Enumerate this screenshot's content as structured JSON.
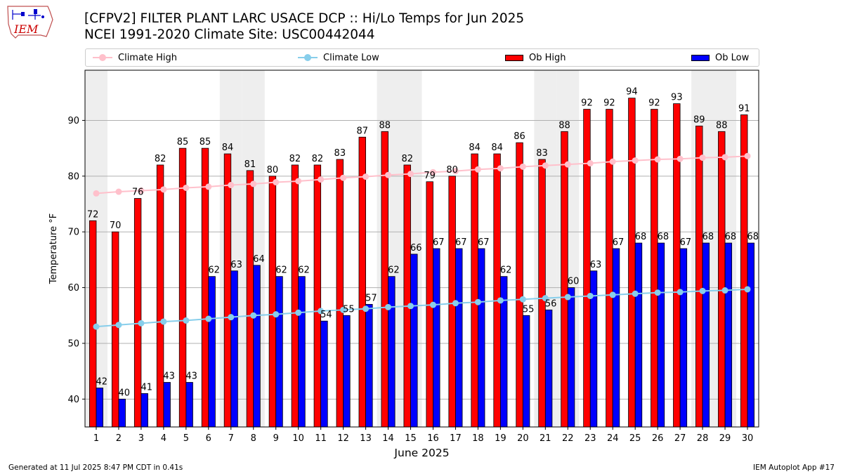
{
  "title_line1": "[CFPV2] FILTER PLANT LARC  USACE DCP :: Hi/Lo Temps for Jun 2025",
  "title_line2": "NCEI 1991-2020 Climate Site: USC00442044",
  "logo_text": "IEM",
  "legend": [
    {
      "label": "Climate High",
      "color": "#ffc0cb",
      "kind": "line"
    },
    {
      "label": "Climate Low",
      "color": "#87ceeb",
      "kind": "line"
    },
    {
      "label": "Ob High",
      "color": "#ff0000",
      "kind": "bar"
    },
    {
      "label": "Ob Low",
      "color": "#0000ff",
      "kind": "bar"
    }
  ],
  "footer_left": "Generated at 11 Jul 2025 8:47 PM CDT in 0.41s",
  "footer_right": "IEM Autoplot App #17",
  "chart_data": {
    "type": "bar",
    "xlabel": "June 2025",
    "ylabel": "Temperature °F",
    "ylim": [
      35,
      99
    ],
    "yticks": [
      40,
      50,
      60,
      70,
      80,
      90
    ],
    "grid": true,
    "weekend_shading_color": "#eeeeee",
    "weekend_days": [
      1,
      7,
      8,
      14,
      15,
      21,
      22,
      28,
      29
    ],
    "categories": [
      1,
      2,
      3,
      4,
      5,
      6,
      7,
      8,
      9,
      10,
      11,
      12,
      13,
      14,
      15,
      16,
      17,
      18,
      19,
      20,
      21,
      22,
      23,
      24,
      25,
      26,
      27,
      28,
      29,
      30
    ],
    "series": [
      {
        "name": "Ob High",
        "color": "#ff0000",
        "type": "bar",
        "values": [
          72,
          70,
          76,
          82,
          85,
          85,
          84,
          81,
          80,
          82,
          82,
          83,
          87,
          88,
          82,
          79,
          80,
          84,
          84,
          86,
          83,
          88,
          92,
          92,
          94,
          92,
          93,
          89,
          88,
          91
        ]
      },
      {
        "name": "Ob Low",
        "color": "#0000ff",
        "type": "bar",
        "values": [
          42,
          40,
          41,
          43,
          43,
          62,
          63,
          64,
          62,
          62,
          54,
          55,
          57,
          62,
          66,
          67,
          67,
          67,
          62,
          55,
          56,
          60,
          63,
          67,
          68,
          68,
          67,
          68,
          68,
          68
        ]
      },
      {
        "name": "Climate High",
        "color": "#ffc0cb",
        "type": "line",
        "values": [
          76.9,
          77.2,
          77.4,
          77.6,
          77.9,
          78.1,
          78.4,
          78.6,
          78.9,
          79.1,
          79.4,
          79.7,
          79.9,
          80.2,
          80.4,
          80.7,
          80.9,
          81.2,
          81.4,
          81.7,
          81.9,
          82.1,
          82.3,
          82.6,
          82.8,
          83.0,
          83.1,
          83.3,
          83.4,
          83.6
        ]
      },
      {
        "name": "Climate Low",
        "color": "#87ceeb",
        "type": "line",
        "values": [
          53.0,
          53.3,
          53.6,
          53.9,
          54.1,
          54.4,
          54.7,
          55.0,
          55.2,
          55.5,
          55.8,
          56.0,
          56.2,
          56.5,
          56.7,
          56.9,
          57.2,
          57.4,
          57.7,
          57.9,
          58.1,
          58.3,
          58.5,
          58.7,
          58.9,
          59.1,
          59.2,
          59.4,
          59.5,
          59.7
        ]
      }
    ]
  }
}
